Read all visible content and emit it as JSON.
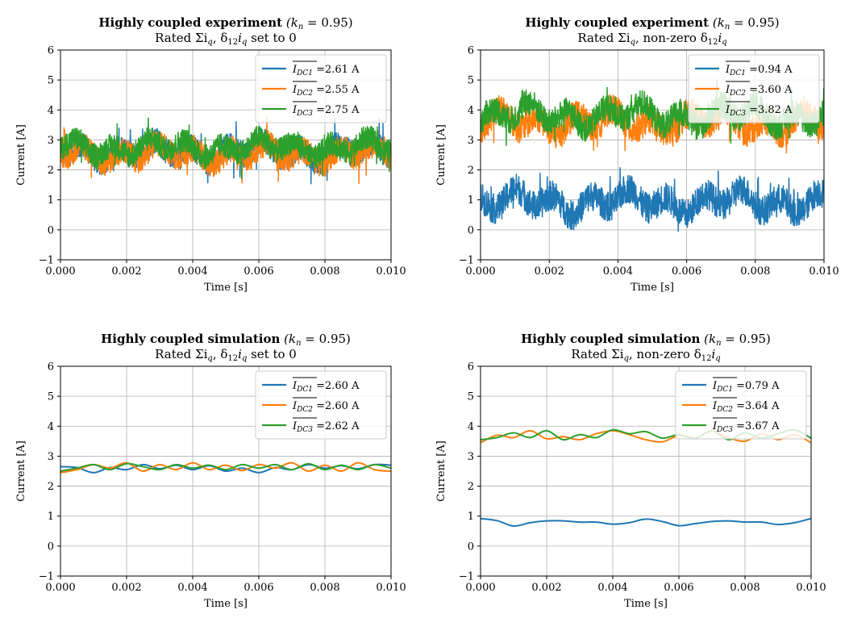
{
  "chart_data": [
    {
      "type": "line",
      "title_bold": "Highly coupled experiment",
      "title_rest": " (k",
      "title_sub": "n",
      "title_tail": " = 0.95)",
      "subtitle": "Rated Σi_q, δ12i_q set to 0",
      "subtitle_a": "Rated Σi",
      "subtitle_b": "q",
      "subtitle_c": ", δ",
      "subtitle_d": "12",
      "subtitle_e": "i",
      "subtitle_f": "q",
      "subtitle_g": " set to 0",
      "xlabel": "Time [s]",
      "ylabel": "Current [A]",
      "xlim": [
        0,
        0.01
      ],
      "ylim": [
        -1,
        6
      ],
      "xticks": [
        "0.000",
        "0.002",
        "0.004",
        "0.006",
        "0.008",
        "0.010"
      ],
      "yticks": [
        "−1",
        "0",
        "1",
        "2",
        "3",
        "4",
        "5",
        "6"
      ],
      "grid": true,
      "legend_position": "top-right",
      "style": "noisy",
      "series": [
        {
          "name": "I_DC1 = 2.61 A",
          "label_main": "I",
          "label_sub": "DC1",
          "label_val": " =2.61 A",
          "color": "#1f77b4",
          "mean": 2.61,
          "amplitude": 0.35,
          "noise": 0.45
        },
        {
          "name": "I_DC2 = 2.55 A",
          "label_main": "I",
          "label_sub": "DC2",
          "label_val": " =2.55 A",
          "color": "#ff7f0e",
          "mean": 2.55,
          "amplitude": 0.35,
          "noise": 0.45
        },
        {
          "name": "I_DC3 = 2.75 A",
          "label_main": "I",
          "label_sub": "DC3",
          "label_val": " =2.75 A",
          "color": "#2ca02c",
          "mean": 2.75,
          "amplitude": 0.35,
          "noise": 0.4
        }
      ]
    },
    {
      "type": "line",
      "title_bold": "Highly coupled experiment",
      "title_rest": " (k",
      "title_sub": "n",
      "title_tail": " = 0.95)",
      "subtitle": "Rated Σi_q, non-zero δ12i_q",
      "subtitle_a": "Rated Σi",
      "subtitle_b": "q",
      "subtitle_c": ", non-zero δ",
      "subtitle_d": "12",
      "subtitle_e": "i",
      "subtitle_f": "q",
      "subtitle_g": "",
      "xlabel": "Time [s]",
      "ylabel": "Current [A]",
      "xlim": [
        0,
        0.01
      ],
      "ylim": [
        -1,
        6
      ],
      "xticks": [
        "0.000",
        "0.002",
        "0.004",
        "0.006",
        "0.008",
        "0.010"
      ],
      "yticks": [
        "−1",
        "0",
        "1",
        "2",
        "3",
        "4",
        "5",
        "6"
      ],
      "grid": true,
      "legend_position": "top-right",
      "style": "noisy",
      "series": [
        {
          "name": "I_DC1 = 0.94 A",
          "label_main": "I",
          "label_sub": "DC1",
          "label_val": " =0.94 A",
          "color": "#1f77b4",
          "mean": 0.94,
          "amplitude": 0.45,
          "noise": 0.5
        },
        {
          "name": "I_DC2 = 3.60 A",
          "label_main": "I",
          "label_sub": "DC2",
          "label_val": " =3.60 A",
          "color": "#ff7f0e",
          "mean": 3.6,
          "amplitude": 0.45,
          "noise": 0.5
        },
        {
          "name": "I_DC3 = 3.82 A",
          "label_main": "I",
          "label_sub": "DC3",
          "label_val": " =3.82 A",
          "color": "#2ca02c",
          "mean": 3.82,
          "amplitude": 0.45,
          "noise": 0.45
        }
      ]
    },
    {
      "type": "line",
      "title_bold": "Highly coupled simulation",
      "title_rest": " (k",
      "title_sub": "n",
      "title_tail": " = 0.95)",
      "subtitle": "Rated Σi_q, δ12i_q set to 0",
      "subtitle_a": "Rated Σi",
      "subtitle_b": "q",
      "subtitle_c": ", δ",
      "subtitle_d": "12",
      "subtitle_e": "i",
      "subtitle_f": "q",
      "subtitle_g": " set to 0",
      "xlabel": "Time [s]",
      "ylabel": "Current [A]",
      "xlim": [
        0,
        0.01
      ],
      "ylim": [
        -1,
        6
      ],
      "xticks": [
        "0.000",
        "0.002",
        "0.004",
        "0.006",
        "0.008",
        "0.010"
      ],
      "yticks": [
        "−1",
        "0",
        "1",
        "2",
        "3",
        "4",
        "5",
        "6"
      ],
      "grid": true,
      "legend_position": "top-right",
      "style": "smooth",
      "series": [
        {
          "name": "I_DC1 = 2.60 A",
          "label_main": "I",
          "label_sub": "DC1",
          "label_val": " =2.60 A",
          "color": "#1f77b4",
          "x": [
            0,
            0.0005,
            0.001,
            0.0015,
            0.002,
            0.0025,
            0.003,
            0.0035,
            0.004,
            0.0045,
            0.005,
            0.0055,
            0.006,
            0.0065,
            0.007,
            0.0075,
            0.008,
            0.0085,
            0.009,
            0.0095,
            0.01
          ],
          "y": [
            2.65,
            2.62,
            2.45,
            2.62,
            2.55,
            2.72,
            2.58,
            2.7,
            2.55,
            2.68,
            2.5,
            2.6,
            2.45,
            2.62,
            2.55,
            2.72,
            2.6,
            2.68,
            2.58,
            2.72,
            2.7
          ]
        },
        {
          "name": "I_DC2 = 2.60 A",
          "label_main": "I",
          "label_sub": "DC2",
          "label_val": " =2.60 A",
          "color": "#ff7f0e",
          "x": [
            0,
            0.0005,
            0.001,
            0.0015,
            0.002,
            0.0025,
            0.003,
            0.0035,
            0.004,
            0.0045,
            0.005,
            0.0055,
            0.006,
            0.0065,
            0.007,
            0.0075,
            0.008,
            0.0085,
            0.009,
            0.0095,
            0.01
          ],
          "y": [
            2.45,
            2.55,
            2.72,
            2.6,
            2.78,
            2.5,
            2.72,
            2.55,
            2.78,
            2.55,
            2.7,
            2.52,
            2.72,
            2.6,
            2.78,
            2.5,
            2.7,
            2.5,
            2.78,
            2.55,
            2.5
          ]
        },
        {
          "name": "I_DC3 = 2.62 A",
          "label_main": "I",
          "label_sub": "DC3",
          "label_val": " =2.62 A",
          "color": "#2ca02c",
          "x": [
            0,
            0.0005,
            0.001,
            0.0015,
            0.002,
            0.0025,
            0.003,
            0.0035,
            0.004,
            0.0045,
            0.005,
            0.0055,
            0.006,
            0.0065,
            0.007,
            0.0075,
            0.008,
            0.0085,
            0.009,
            0.0095,
            0.01
          ],
          "y": [
            2.5,
            2.6,
            2.72,
            2.55,
            2.75,
            2.65,
            2.55,
            2.72,
            2.6,
            2.7,
            2.55,
            2.72,
            2.6,
            2.72,
            2.55,
            2.75,
            2.55,
            2.7,
            2.55,
            2.72,
            2.6
          ]
        }
      ]
    },
    {
      "type": "line",
      "title_bold": "Highly coupled simulation",
      "title_rest": " (k",
      "title_sub": "n",
      "title_tail": " = 0.95)",
      "subtitle": "Rated Σi_q, non-zero δ12i_q",
      "subtitle_a": "Rated Σi",
      "subtitle_b": "q",
      "subtitle_c": ", non-zero δ",
      "subtitle_d": "12",
      "subtitle_e": "i",
      "subtitle_f": "q",
      "subtitle_g": "",
      "xlabel": "Time [s]",
      "ylabel": "Current [A]",
      "xlim": [
        0,
        0.01
      ],
      "ylim": [
        -1,
        6
      ],
      "xticks": [
        "0.000",
        "0.002",
        "0.004",
        "0.006",
        "0.008",
        "0.010"
      ],
      "yticks": [
        "−1",
        "0",
        "1",
        "2",
        "3",
        "4",
        "5",
        "6"
      ],
      "grid": true,
      "legend_position": "top-right",
      "style": "smooth",
      "series": [
        {
          "name": "I_DC1 = 0.79 A",
          "label_main": "I",
          "label_sub": "DC1",
          "label_val": " =0.79 A",
          "color": "#1f77b4",
          "x": [
            0,
            0.0005,
            0.001,
            0.0015,
            0.002,
            0.0025,
            0.003,
            0.0035,
            0.004,
            0.0045,
            0.005,
            0.0055,
            0.006,
            0.0065,
            0.007,
            0.0075,
            0.008,
            0.0085,
            0.009,
            0.0095,
            0.01
          ],
          "y": [
            0.92,
            0.85,
            0.67,
            0.78,
            0.84,
            0.84,
            0.8,
            0.8,
            0.73,
            0.78,
            0.9,
            0.82,
            0.68,
            0.75,
            0.82,
            0.84,
            0.8,
            0.8,
            0.72,
            0.78,
            0.92
          ]
        },
        {
          "name": "I_DC2 = 3.64 A",
          "label_main": "I",
          "label_sub": "DC2",
          "label_val": " =3.64 A",
          "color": "#ff7f0e",
          "x": [
            0,
            0.0005,
            0.001,
            0.0015,
            0.002,
            0.0025,
            0.003,
            0.0035,
            0.004,
            0.0045,
            0.005,
            0.0055,
            0.006,
            0.0065,
            0.007,
            0.0075,
            0.008,
            0.0085,
            0.009,
            0.0095,
            0.01
          ],
          "y": [
            3.45,
            3.7,
            3.62,
            3.85,
            3.58,
            3.65,
            3.55,
            3.75,
            3.85,
            3.72,
            3.55,
            3.48,
            3.68,
            3.6,
            3.85,
            3.62,
            3.5,
            3.75,
            3.55,
            3.72,
            3.45
          ]
        },
        {
          "name": "I_DC3 = 3.67 A",
          "label_main": "I",
          "label_sub": "DC3",
          "label_val": " =3.67 A",
          "color": "#2ca02c",
          "x": [
            0,
            0.0005,
            0.001,
            0.0015,
            0.002,
            0.0025,
            0.003,
            0.0035,
            0.004,
            0.0045,
            0.005,
            0.0055,
            0.006,
            0.0065,
            0.007,
            0.0075,
            0.008,
            0.0085,
            0.009,
            0.0095,
            0.01
          ],
          "y": [
            3.55,
            3.62,
            3.78,
            3.62,
            3.85,
            3.55,
            3.72,
            3.62,
            3.88,
            3.75,
            3.82,
            3.6,
            3.72,
            3.6,
            3.85,
            3.55,
            3.78,
            3.6,
            3.75,
            3.88,
            3.6
          ]
        }
      ]
    }
  ]
}
